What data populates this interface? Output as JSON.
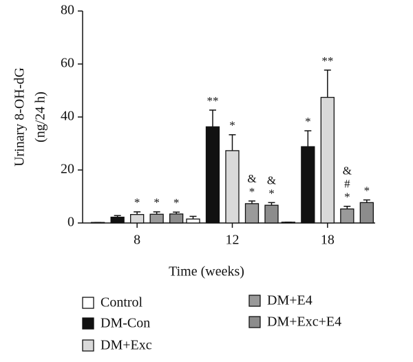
{
  "chart_data": {
    "type": "bar",
    "ylabel": [
      "Urinary 8-OH-dG",
      "(ng/24 h)"
    ],
    "xlabel": "Time (weeks)",
    "categories": [
      "8",
      "12",
      "18"
    ],
    "ylim": [
      0,
      80
    ],
    "yticks": [
      0,
      20,
      40,
      60,
      80
    ],
    "series": [
      {
        "name": "Control",
        "color": "#ffffff",
        "values": [
          0.2,
          1.5,
          0.3
        ],
        "errors": [
          0,
          1.0,
          0
        ],
        "annotations": [
          null,
          null,
          null
        ]
      },
      {
        "name": "DM-Con",
        "color": "#111111",
        "values": [
          2.2,
          36.3,
          28.8
        ],
        "errors": [
          0.6,
          6.3,
          6.0
        ],
        "annotations": [
          null,
          [
            "**"
          ],
          [
            "*"
          ]
        ]
      },
      {
        "name": "DM+Exc",
        "color": "#d9d9d9",
        "values": [
          3.2,
          27.3,
          47.4
        ],
        "errors": [
          1.0,
          6.0,
          10.3
        ],
        "annotations": [
          [
            "*"
          ],
          [
            "*"
          ],
          [
            "**"
          ]
        ]
      },
      {
        "name": "DM+E4",
        "color": "#9a9a9a",
        "values": [
          3.3,
          7.3,
          5.3
        ],
        "errors": [
          0.9,
          1.0,
          1.0
        ],
        "annotations": [
          [
            "*"
          ],
          [
            "&",
            "*"
          ],
          [
            "&",
            "#",
            "*"
          ]
        ]
      },
      {
        "name": "DM+Exc+E4",
        "color": "#8c8c8c",
        "values": [
          3.4,
          6.7,
          7.7
        ],
        "errors": [
          0.7,
          1.0,
          1.0
        ],
        "annotations": [
          [
            "*"
          ],
          [
            "&",
            "*"
          ],
          [
            "*"
          ]
        ]
      }
    ]
  }
}
